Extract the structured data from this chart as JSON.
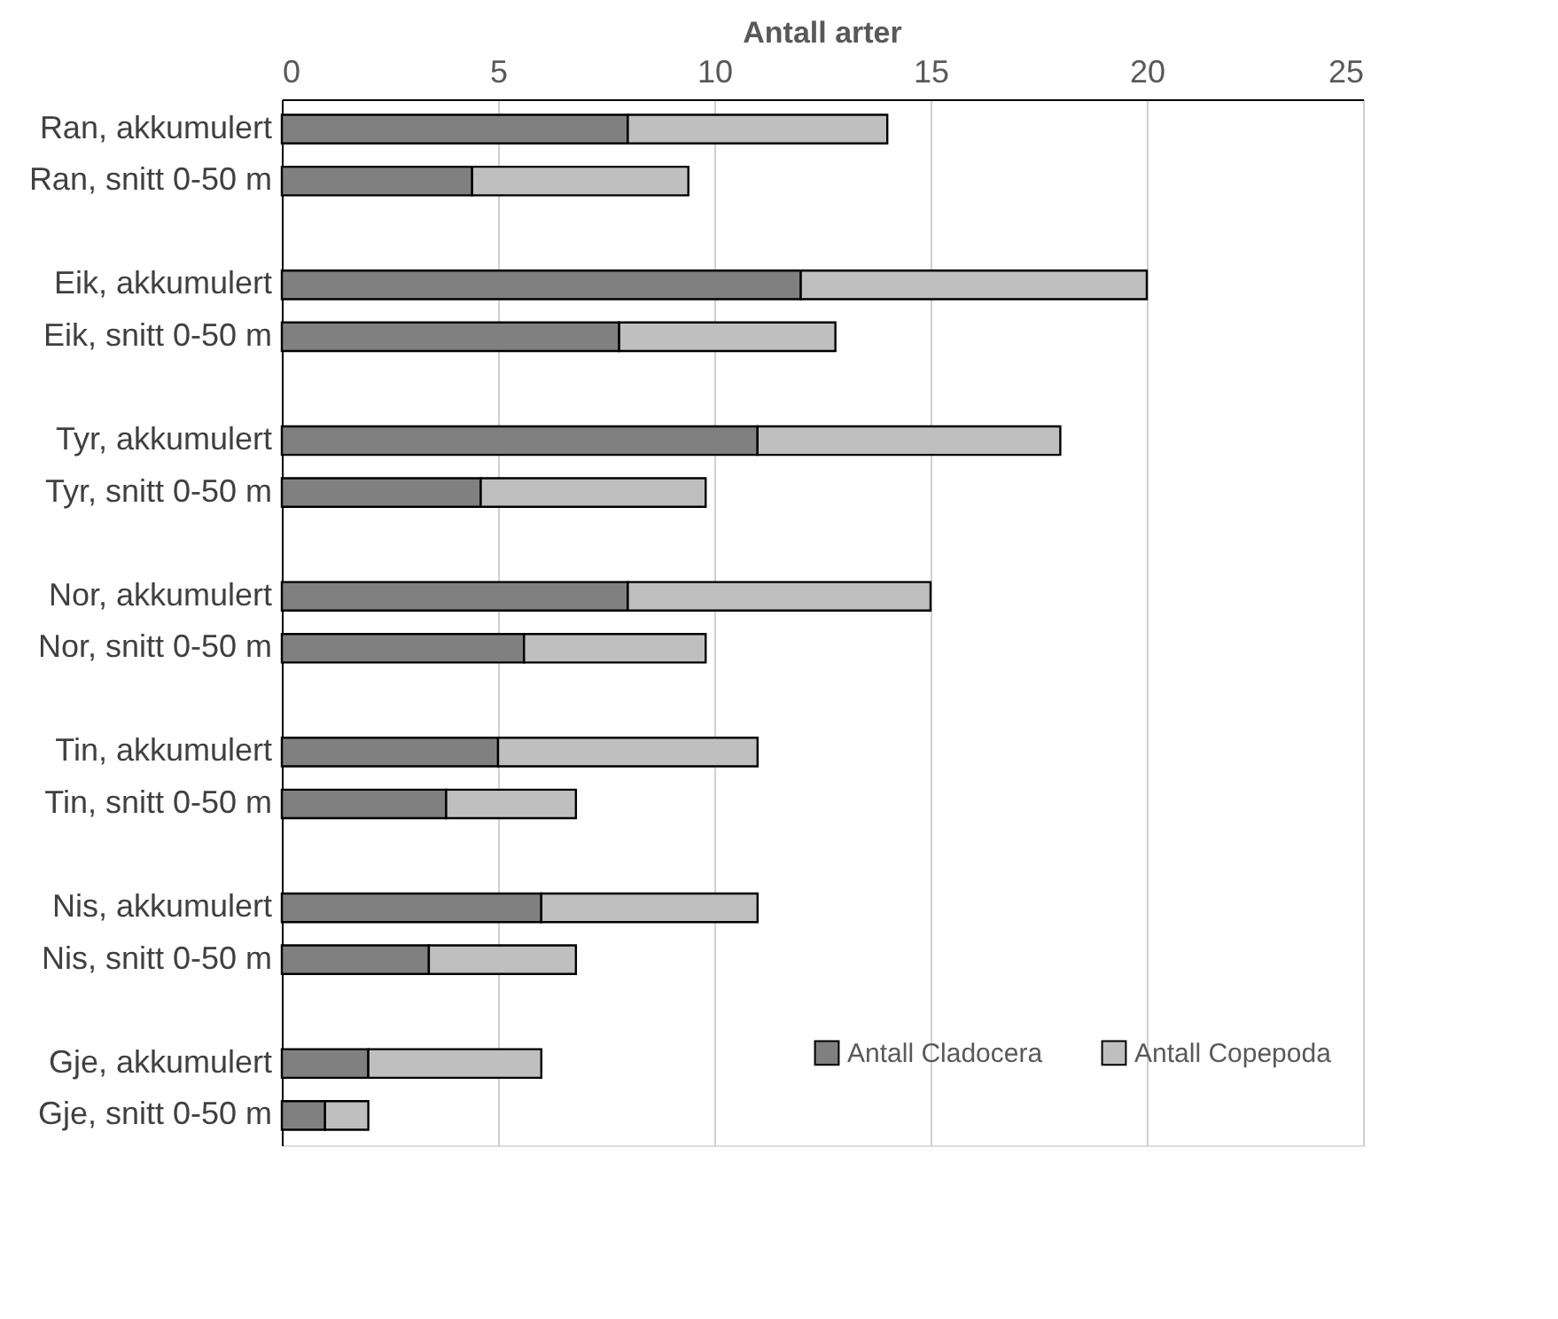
{
  "chart_data": {
    "type": "bar",
    "orientation": "horizontal",
    "stacked": true,
    "title": "Antall arter",
    "categories": [
      "Ran, akkumulert",
      "Ran, snitt 0-50 m",
      null,
      "Eik, akkumulert",
      "Eik, snitt 0-50 m",
      null,
      "Tyr, akkumulert",
      "Tyr, snitt 0-50 m",
      null,
      "Nor, akkumulert",
      "Nor, snitt 0-50 m",
      null,
      "Tin, akkumulert",
      "Tin, snitt 0-50 m",
      null,
      "Nis, akkumulert",
      "Nis, snitt 0-50 m",
      null,
      "Gje, akkumulert",
      "Gje, snitt 0-50 m"
    ],
    "series": [
      {
        "name": "Antall Cladocera",
        "color": "#808080",
        "values": [
          8,
          4.4,
          null,
          12,
          7.8,
          null,
          11,
          4.6,
          null,
          8,
          5.6,
          null,
          5,
          3.8,
          null,
          6,
          3.4,
          null,
          2,
          1
        ]
      },
      {
        "name": "Antall Copepoda",
        "color": "#bfbfbf",
        "values": [
          6,
          5.0,
          null,
          8,
          5.0,
          null,
          7,
          5.2,
          null,
          7,
          4.2,
          null,
          6,
          3.0,
          null,
          5,
          3.4,
          null,
          4,
          1
        ]
      }
    ],
    "xlim": [
      0,
      25
    ],
    "xticks": [
      0,
      5,
      10,
      15,
      20,
      25
    ],
    "grid": "x",
    "legend": "bottom right"
  }
}
